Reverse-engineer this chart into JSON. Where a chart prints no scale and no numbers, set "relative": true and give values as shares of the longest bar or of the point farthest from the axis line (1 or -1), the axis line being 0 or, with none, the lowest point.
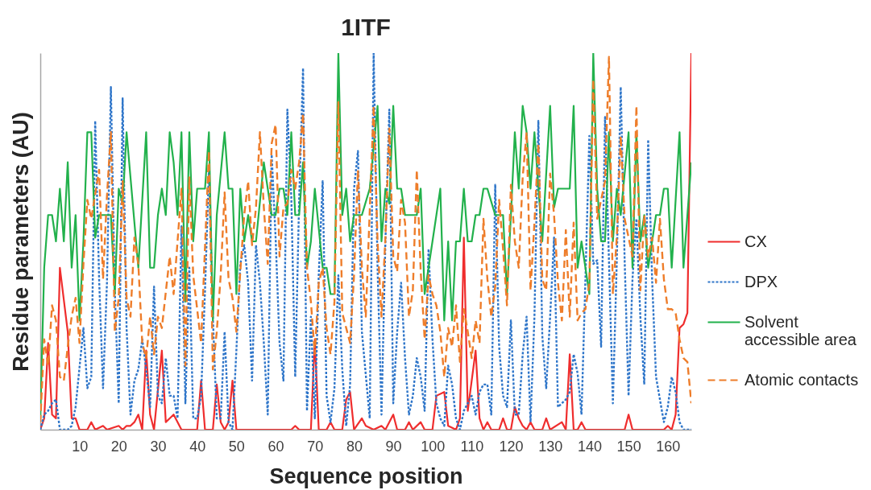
{
  "chart_data": {
    "type": "line",
    "title": "1ITF",
    "xlabel": "Sequence position",
    "ylabel": "Residue parameters (AU)",
    "relative": true,
    "xlim": [
      0,
      166
    ],
    "xticks": [
      10,
      20,
      30,
      40,
      50,
      60,
      70,
      80,
      90,
      100,
      110,
      120,
      130,
      140,
      150,
      160
    ],
    "grid": false,
    "legend": "right",
    "series": [
      {
        "name": "CX",
        "color": "#ef2d2d",
        "line_style": "solid",
        "x": [
          0,
          1,
          2,
          3,
          4,
          5,
          7,
          8,
          9,
          10,
          12,
          13,
          14,
          16,
          17,
          20,
          21,
          22,
          23,
          24,
          25,
          26,
          27,
          28,
          29,
          31,
          32,
          33,
          34,
          36,
          40,
          41,
          42,
          44,
          45,
          46,
          47,
          48,
          49,
          50,
          64,
          65,
          66,
          69,
          70,
          71,
          73,
          74,
          75,
          77,
          78,
          79,
          80,
          82,
          83,
          85,
          87,
          88,
          90,
          91,
          93,
          94,
          95,
          97,
          98,
          100,
          101,
          103,
          104,
          106,
          107,
          108,
          109,
          111,
          112,
          113,
          114,
          115,
          117,
          118,
          119,
          120,
          121,
          122,
          123,
          124,
          125,
          126,
          128,
          129,
          130,
          133,
          134,
          135,
          136,
          137,
          138,
          139,
          149,
          150,
          151,
          159,
          160,
          161,
          162,
          163,
          164,
          165,
          166
        ],
        "values": [
          0,
          0.03,
          0.23,
          0.04,
          0.03,
          0.43,
          0.26,
          0.03,
          0.03,
          0,
          0,
          0.02,
          0,
          0.01,
          0,
          0.01,
          0,
          0.01,
          0.01,
          0.02,
          0.04,
          0,
          0.21,
          0.04,
          0,
          0.21,
          0.02,
          0.03,
          0.04,
          0,
          0,
          0.13,
          0,
          0,
          0.12,
          0.02,
          0,
          0.02,
          0.13,
          0,
          0,
          0.01,
          0,
          0,
          0.24,
          0,
          0,
          0.02,
          0,
          0,
          0.08,
          0.1,
          0,
          0.03,
          0.01,
          0,
          0.01,
          0,
          0.04,
          0,
          0,
          0.02,
          0,
          0.02,
          0,
          0,
          0.09,
          0.1,
          0.01,
          0,
          0.03,
          0.51,
          0.05,
          0.21,
          0.03,
          0,
          0.02,
          0,
          0,
          0.03,
          0,
          0,
          0.06,
          0.03,
          0.01,
          0,
          0.02,
          0,
          0,
          0.03,
          0,
          0.02,
          0,
          0.2,
          0,
          0,
          0.02,
          0,
          0,
          0.04,
          0,
          0,
          0.01,
          0,
          0.04,
          0.27,
          0.28,
          0.31,
          1
        ]
      },
      {
        "name": "DPX",
        "color": "#2e75c9",
        "line_style": "dotted",
        "x": [
          0,
          1,
          2,
          3,
          4,
          5,
          7,
          8,
          9,
          11,
          12,
          13,
          14,
          15,
          16,
          17,
          18,
          19,
          20,
          21,
          22,
          23,
          24,
          25,
          26,
          27,
          28,
          29,
          30,
          31,
          32,
          33,
          34,
          35,
          36,
          37,
          38,
          39,
          40,
          41,
          42,
          43,
          44,
          45,
          46,
          47,
          48,
          49,
          50,
          51,
          52,
          53,
          54,
          55,
          56,
          57,
          58,
          59,
          60,
          61,
          62,
          63,
          64,
          65,
          66,
          67,
          68,
          69,
          70,
          71,
          72,
          73,
          74,
          75,
          76,
          77,
          78,
          79,
          80,
          81,
          82,
          84,
          85,
          86,
          87,
          88,
          89,
          90,
          91,
          92,
          93,
          94,
          95,
          96,
          97,
          98,
          99,
          100,
          101,
          102,
          103,
          104,
          105,
          106,
          107,
          108,
          110,
          111,
          112,
          113,
          114,
          115,
          116,
          117,
          118,
          119,
          120,
          121,
          122,
          123,
          124,
          125,
          126,
          127,
          128,
          129,
          130,
          131,
          132,
          133,
          134,
          135,
          136,
          137,
          138,
          139,
          140,
          141,
          142,
          143,
          144,
          145,
          146,
          147,
          148,
          149,
          150,
          151,
          152,
          153,
          154,
          155,
          156,
          157,
          158,
          159,
          160,
          161,
          162,
          163,
          164,
          166
        ],
        "values": [
          0,
          0.04,
          0.05,
          0.07,
          0.08,
          0,
          0,
          0.01,
          0.06,
          0.27,
          0.11,
          0.14,
          0.82,
          0.4,
          0.11,
          0.39,
          0.91,
          0.37,
          0.07,
          0.88,
          0.27,
          0.04,
          0.13,
          0.16,
          0.24,
          0.16,
          0.06,
          0.38,
          0.09,
          0.07,
          0.19,
          0.09,
          0.09,
          0.03,
          0.54,
          0.07,
          0.43,
          0.03,
          0.03,
          0.09,
          0.37,
          0.69,
          0.3,
          0.03,
          0.03,
          0.26,
          0.02,
          0,
          0.21,
          0.44,
          0.49,
          0.39,
          0.13,
          0.49,
          0.39,
          0.23,
          0.04,
          0.73,
          0.51,
          0.23,
          0.13,
          0.85,
          0.62,
          0.14,
          0.61,
          0.96,
          0.05,
          0.3,
          0.03,
          0.41,
          0.66,
          0.09,
          0.02,
          0.11,
          0.41,
          0.16,
          0.01,
          0.12,
          0.64,
          0.74,
          0.26,
          0.03,
          1,
          0.43,
          0.04,
          0.5,
          0.85,
          0.07,
          0.26,
          0.39,
          0.19,
          0.04,
          0.09,
          0.19,
          0.14,
          0.05,
          0.48,
          0.24,
          0.07,
          0.03,
          0.01,
          0.17,
          0.12,
          0.03,
          0,
          0.05,
          0.09,
          0.04,
          0.1,
          0.12,
          0.12,
          0.04,
          0.65,
          0.22,
          0.09,
          0.06,
          0.29,
          0.04,
          0.04,
          0.2,
          0.3,
          0.02,
          0.3,
          0.82,
          0.25,
          0.11,
          0.3,
          0.51,
          0.06,
          0.07,
          0.08,
          0.1,
          0.2,
          0.15,
          0.04,
          0.4,
          0.78,
          0.44,
          0.45,
          0.22,
          0.83,
          0.45,
          0.07,
          0.45,
          0.91,
          0.45,
          0.09,
          0.4,
          0.56,
          0.3,
          0.12,
          0.77,
          0.4,
          0.14,
          0.08,
          0.02,
          0.06,
          0.14,
          0.1,
          0.02,
          0,
          0
        ]
      },
      {
        "name": "Solvent accessible area",
        "color": "#22b14c",
        "line_style": "solid",
        "x": [
          0,
          1,
          2,
          3,
          4,
          5,
          6,
          7,
          8,
          9,
          10,
          11,
          12,
          13,
          14,
          15,
          18,
          19,
          20,
          21,
          22,
          25,
          27,
          28,
          29,
          30,
          31,
          32,
          33,
          34,
          35,
          36,
          37,
          38,
          39,
          40,
          42,
          43,
          44,
          45,
          47,
          48,
          49,
          50,
          51,
          52,
          53,
          54,
          55,
          57,
          58,
          59,
          60,
          61,
          62,
          63,
          64,
          65,
          66,
          67,
          68,
          69,
          70,
          72,
          73,
          74,
          75,
          76,
          77,
          78,
          79,
          80,
          82,
          84,
          86,
          87,
          88,
          89,
          90,
          91,
          92,
          93,
          96,
          97,
          98,
          99,
          102,
          103,
          104,
          105,
          106,
          107,
          108,
          109,
          110,
          111,
          112,
          113,
          114,
          116,
          118,
          119,
          120,
          121,
          122,
          123,
          124,
          125,
          126,
          128,
          130,
          131,
          132,
          135,
          136,
          137,
          138,
          140,
          141,
          142,
          143,
          144,
          145,
          146,
          147,
          148,
          150,
          151,
          152,
          153,
          154,
          155,
          157,
          158,
          159,
          160,
          161,
          163,
          164,
          166
        ],
        "values": [
          0.03,
          0.43,
          0.57,
          0.57,
          0.5,
          0.64,
          0.5,
          0.71,
          0.43,
          0.57,
          0.29,
          0.5,
          0.79,
          0.79,
          0.51,
          0.57,
          0.57,
          0.36,
          0.64,
          0.6,
          0.79,
          0.43,
          0.79,
          0.43,
          0.43,
          0.57,
          0.64,
          0.57,
          0.79,
          0.71,
          0.57,
          0.79,
          0.34,
          0.79,
          0.5,
          0.64,
          0.64,
          0.79,
          0.29,
          0.57,
          0.79,
          0.64,
          0.64,
          0.36,
          0.64,
          0.5,
          0.57,
          0.5,
          0.5,
          0.71,
          0.64,
          0.57,
          0.57,
          0.64,
          0.64,
          0.57,
          0.79,
          0.57,
          0.57,
          0.71,
          0.43,
          0.5,
          0.64,
          0.43,
          0.43,
          0.36,
          0.36,
          1,
          0.57,
          0.64,
          0.5,
          0.57,
          0.57,
          0.64,
          0.86,
          0.5,
          0.64,
          0.6,
          0.86,
          0.64,
          0.64,
          0.57,
          0.57,
          0.64,
          0.36,
          0.43,
          0.64,
          0.29,
          0.5,
          0.29,
          0.5,
          0.5,
          0.64,
          0.5,
          0.5,
          0.57,
          0.57,
          0.64,
          0.64,
          0.57,
          0.57,
          0.36,
          0.57,
          0.79,
          0.64,
          0.86,
          0.79,
          0.64,
          0.79,
          0.5,
          0.86,
          0.59,
          0.64,
          0.64,
          0.86,
          0.43,
          0.5,
          0.36,
          1,
          0.64,
          0.5,
          0.5,
          0.79,
          0.5,
          0.64,
          0.57,
          0.79,
          0.43,
          0.79,
          0.5,
          0.57,
          0.43,
          0.57,
          0.57,
          0.64,
          0.64,
          0.43,
          0.79,
          0.43,
          0.71
        ]
      },
      {
        "name": "Atomic contacts",
        "color": "#ee7d2a",
        "line_style": "dashed",
        "x": [
          0,
          1,
          2,
          3,
          4,
          5,
          6,
          7,
          8,
          9,
          10,
          11,
          12,
          13,
          15,
          16,
          17,
          18,
          19,
          20,
          21,
          22,
          23,
          24,
          25,
          26,
          27,
          28,
          29,
          30,
          31,
          33,
          34,
          36,
          37,
          38,
          39,
          41,
          43,
          44,
          45,
          46,
          47,
          48,
          49,
          50,
          51,
          52,
          53,
          54,
          55,
          56,
          57,
          58,
          59,
          60,
          61,
          62,
          63,
          64,
          65,
          66,
          67,
          68,
          69,
          70,
          71,
          72,
          73,
          74,
          75,
          76,
          77,
          78,
          79,
          80,
          81,
          82,
          83,
          85,
          86,
          87,
          88,
          89,
          90,
          91,
          92,
          93,
          94,
          95,
          96,
          97,
          98,
          99,
          100,
          101,
          102,
          103,
          104,
          105,
          106,
          107,
          108,
          109,
          110,
          111,
          112,
          113,
          114,
          115,
          116,
          117,
          118,
          119,
          120,
          121,
          122,
          123,
          124,
          125,
          126,
          127,
          128,
          129,
          130,
          131,
          132,
          133,
          134,
          135,
          136,
          137,
          138,
          139,
          140,
          141,
          142,
          143,
          144,
          145,
          146,
          147,
          148,
          149,
          150,
          151,
          152,
          153,
          154,
          155,
          156,
          157,
          158,
          159,
          160,
          161,
          162,
          163,
          164,
          165,
          166
        ],
        "values": [
          0.02,
          0.24,
          0.17,
          0.33,
          0.29,
          0.14,
          0.13,
          0.22,
          0.3,
          0.35,
          0.23,
          0.44,
          0.61,
          0.56,
          0.69,
          0.4,
          0.62,
          0.79,
          0.26,
          0.35,
          0.66,
          0.35,
          0.3,
          0.51,
          0.44,
          0.23,
          0.19,
          0.3,
          0.2,
          0.3,
          0.27,
          0.46,
          0.36,
          0.64,
          0.17,
          0.67,
          0.41,
          0.23,
          0.74,
          0.16,
          0.26,
          0.41,
          0.63,
          0.4,
          0.35,
          0.26,
          0.42,
          0.57,
          0.66,
          0.49,
          0.59,
          0.79,
          0.59,
          0.44,
          0.76,
          0.81,
          0.46,
          0.59,
          0.6,
          0.69,
          0.64,
          0.71,
          0.84,
          0.43,
          0.34,
          0.2,
          0.39,
          0.43,
          0.27,
          0.2,
          0.34,
          0.87,
          0.31,
          0.27,
          0.23,
          0.41,
          0.69,
          0.43,
          0.3,
          0.86,
          0.5,
          0.3,
          0.51,
          0.8,
          0.46,
          0.42,
          0.61,
          0.55,
          0.3,
          0.37,
          0.69,
          0.42,
          0.24,
          0.41,
          0.36,
          0.33,
          0.26,
          0.14,
          0.27,
          0.22,
          0.33,
          0.18,
          0.32,
          0.26,
          0.19,
          0.29,
          0.23,
          0.56,
          0.4,
          0.3,
          0.38,
          0.61,
          0.48,
          0.33,
          0.65,
          0.5,
          0.43,
          0.67,
          0.79,
          0.37,
          0.55,
          0.76,
          0.4,
          0.37,
          0.68,
          0.57,
          0.39,
          0.29,
          0.53,
          0.3,
          0.55,
          0.29,
          0.31,
          0.32,
          0.39,
          0.93,
          0.56,
          0.61,
          0.66,
          0.99,
          0.36,
          0.51,
          0.78,
          0.56,
          0.51,
          0.46,
          0.86,
          0.37,
          0.57,
          0.46,
          0.51,
          0.39,
          0.56,
          0.4,
          0.32,
          0.32,
          0.31,
          0.24,
          0.19,
          0.18,
          0.07
        ]
      }
    ]
  }
}
